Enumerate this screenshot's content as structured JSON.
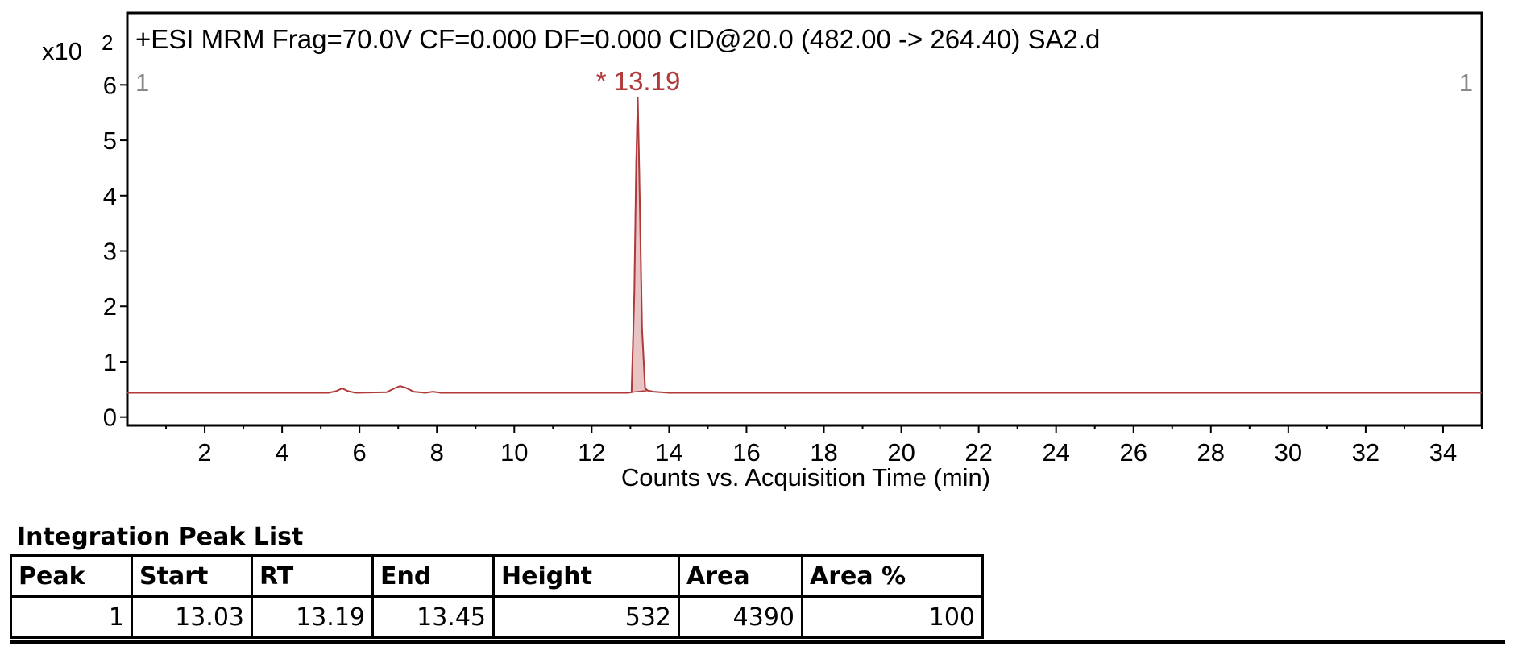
{
  "chart_data": {
    "type": "line",
    "title": "+ESI MRM Frag=70.0V CF=0.000 DF=0.000 CID@20.0 (482.00 -> 264.40) SA2.d",
    "y_multiplier": "x10",
    "y_exponent": "2",
    "xlabel": "Counts vs. Acquisition Time (min)",
    "ylabel": "",
    "xlim": [
      0.0,
      35.0
    ],
    "ylim": [
      -0.15,
      7.3
    ],
    "x_ticks": [
      "2",
      "4",
      "6",
      "8",
      "10",
      "12",
      "14",
      "16",
      "18",
      "20",
      "22",
      "24",
      "26",
      "28",
      "30",
      "32",
      "34"
    ],
    "y_ticks": [
      "0",
      "1",
      "2",
      "3",
      "4",
      "5",
      "6"
    ],
    "corner_label_left": "1",
    "corner_label_right": "1",
    "peak_label": "* 13.19",
    "peak_label_color": "#b03a3a",
    "series": [
      {
        "color": "#b03a3a",
        "fill_color": "#e8c4c4",
        "x": [
          0.0,
          5.2,
          5.4,
          5.55,
          5.7,
          5.9,
          6.7,
          6.9,
          7.05,
          7.2,
          7.4,
          7.7,
          7.9,
          8.1,
          12.95,
          13.03,
          13.1,
          13.15,
          13.19,
          13.23,
          13.3,
          13.38,
          13.45,
          13.6,
          14.0,
          35.0
        ],
        "y": [
          0.44,
          0.44,
          0.47,
          0.52,
          0.47,
          0.44,
          0.45,
          0.52,
          0.56,
          0.53,
          0.46,
          0.44,
          0.46,
          0.44,
          0.44,
          0.45,
          2.2,
          4.6,
          5.78,
          4.4,
          1.6,
          0.52,
          0.48,
          0.46,
          0.44,
          0.44
        ]
      }
    ],
    "integration_start": 13.03,
    "integration_end": 13.45
  },
  "peak_list": {
    "title": "Integration Peak List",
    "columns": [
      "Peak",
      "Start",
      "RT",
      "End",
      "Height",
      "Area",
      "Area %"
    ],
    "rows": [
      [
        "1",
        "13.03",
        "13.19",
        "13.45",
        "532",
        "4390",
        "100"
      ]
    ]
  }
}
